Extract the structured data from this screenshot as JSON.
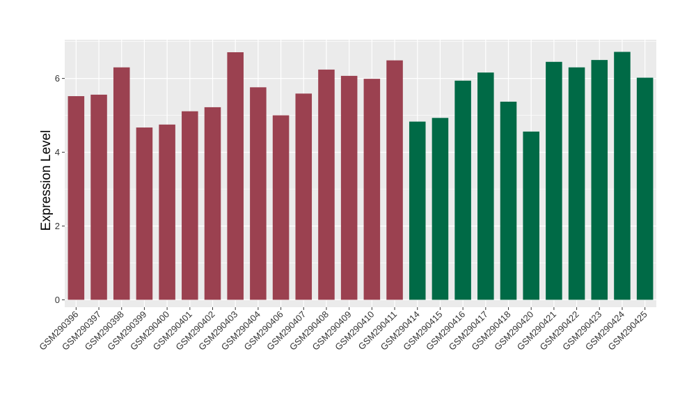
{
  "chart_data": {
    "type": "bar",
    "title": "",
    "xlabel": "",
    "ylabel": "Expression Level",
    "ylim": [
      -0.2,
      7.05
    ],
    "yticks": [
      0,
      2,
      4,
      6
    ],
    "grid": true,
    "legend": "none",
    "panel_background": "#ebebeb",
    "gridline_color": "#ffffff",
    "categories": [
      "GSM290396",
      "GSM290397",
      "GSM290398",
      "GSM290399",
      "GSM290400",
      "GSM290401",
      "GSM290402",
      "GSM290403",
      "GSM290404",
      "GSM290406",
      "GSM290407",
      "GSM290408",
      "GSM290409",
      "GSM290410",
      "GSM290411",
      "GSM290414",
      "GSM290415",
      "GSM290416",
      "GSM290417",
      "GSM290418",
      "GSM290420",
      "GSM290421",
      "GSM290422",
      "GSM290423",
      "GSM290424",
      "GSM290425"
    ],
    "values": [
      5.52,
      5.56,
      6.3,
      4.67,
      4.75,
      5.11,
      5.22,
      6.71,
      5.76,
      5.0,
      5.59,
      6.24,
      6.07,
      5.99,
      6.49,
      4.83,
      4.93,
      5.94,
      6.16,
      5.37,
      4.56,
      6.45,
      6.3,
      6.5,
      6.72,
      6.02
    ],
    "colors": [
      "#9b4150",
      "#9b4150",
      "#9b4150",
      "#9b4150",
      "#9b4150",
      "#9b4150",
      "#9b4150",
      "#9b4150",
      "#9b4150",
      "#9b4150",
      "#9b4150",
      "#9b4150",
      "#9b4150",
      "#9b4150",
      "#9b4150",
      "#006a46",
      "#006a46",
      "#006a46",
      "#006a46",
      "#006a46",
      "#006a46",
      "#006a46",
      "#006a46",
      "#006a46",
      "#006a46",
      "#006a46"
    ]
  }
}
